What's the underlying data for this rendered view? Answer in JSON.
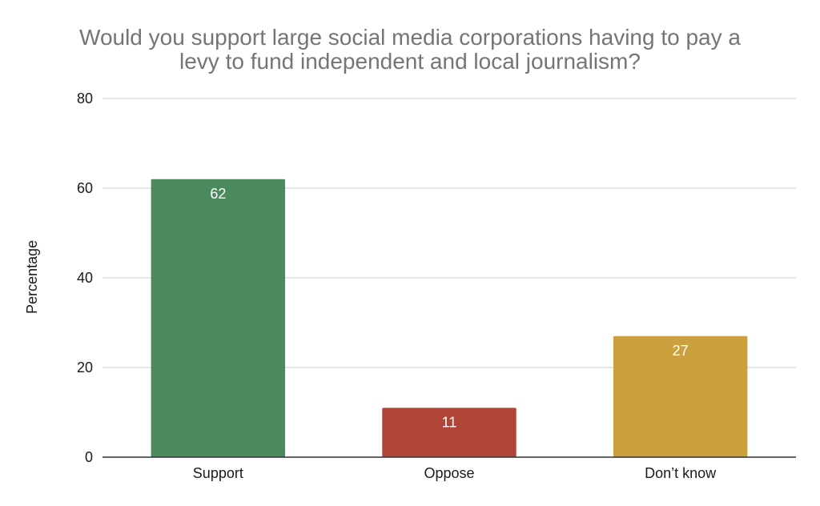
{
  "chart_data": {
    "type": "bar",
    "title": "Would you support large social media corporations having to pay a levy to fund independent and local journalism?",
    "title_lines": [
      "Would you support large social media corporations having to pay a",
      "levy to fund independent and local journalism?"
    ],
    "xlabel": "",
    "ylabel": "Percentage",
    "categories": [
      "Support",
      "Oppose",
      "Don’t know"
    ],
    "values": [
      62,
      11,
      27
    ],
    "value_labels": [
      "62",
      "11",
      "27"
    ],
    "colors": [
      "#4a8a5d",
      "#b04436",
      "#cca03d"
    ],
    "ylim": [
      0,
      80
    ],
    "yticks": [
      0,
      20,
      40,
      60,
      80
    ],
    "grid": true,
    "legend": "none"
  }
}
